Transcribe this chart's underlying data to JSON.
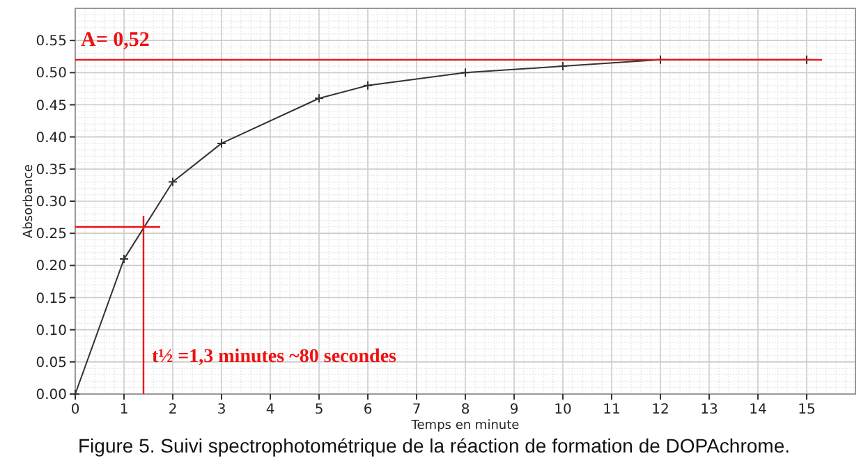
{
  "chart_data": {
    "type": "line",
    "xlabel": "Temps en minute",
    "ylabel": "Absorbance",
    "x": [
      0,
      1,
      2,
      3,
      5,
      6,
      8,
      10,
      12,
      15
    ],
    "series": [
      {
        "color": "#333333",
        "values": [
          0,
          0.21,
          0.33,
          0.39,
          0.46,
          0.48,
          0.5,
          0.51,
          0.52,
          0.52
        ]
      }
    ],
    "xlim": [
      0,
      16
    ],
    "ylim": [
      0,
      0.6
    ],
    "xticks": [
      0,
      1,
      2,
      3,
      4,
      5,
      6,
      7,
      8,
      9,
      10,
      11,
      12,
      13,
      14,
      15
    ],
    "yticks": [
      {
        "value": 0,
        "label": "0.00"
      },
      {
        "value": 0.05,
        "label": "0.05"
      },
      {
        "value": 0.1,
        "label": "0.10"
      },
      {
        "value": 0.15,
        "label": "0.15"
      },
      {
        "value": 0.2,
        "label": "0.20"
      },
      {
        "value": 0.25,
        "label": "0.25"
      },
      {
        "value": 0.3,
        "label": "0.30"
      },
      {
        "value": 0.35,
        "label": "0.35"
      },
      {
        "value": 0.4,
        "label": "0.40"
      },
      {
        "value": 0.45,
        "label": "0.45"
      },
      {
        "value": 0.5,
        "label": "0.50"
      },
      {
        "value": 0.55,
        "label": "0.55"
      }
    ],
    "grid": true,
    "marker": "cross",
    "line_style": "solid",
    "ref_lines": [
      {
        "axis": "y",
        "value": 0.52,
        "label": "A= 0,52",
        "color": "#ee1111"
      },
      {
        "axis": "y",
        "value": 0.26,
        "color": "#ee1111"
      },
      {
        "axis": "x",
        "value": 1.4,
        "color": "#ee1111"
      }
    ],
    "annotations": [
      {
        "text": "t½ =1,3 minutes ~80 secondes",
        "x": 1.4,
        "y": 0.05
      },
      "Figure 5. Suivi spectrophotométrique de la réaction de formation de DOPAchrome."
    ]
  }
}
